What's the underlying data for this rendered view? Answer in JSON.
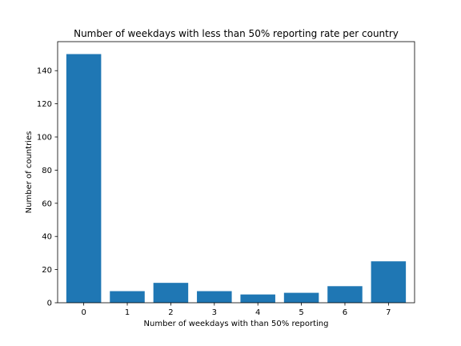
{
  "chart_data": {
    "type": "bar",
    "title": "Number of weekdays with less than 50% reporting rate per country",
    "xlabel": "Number of weekdays with than 50% reporting",
    "ylabel": "Number of countries",
    "categories": [
      "0",
      "1",
      "2",
      "3",
      "4",
      "5",
      "6",
      "7"
    ],
    "values": [
      150,
      7,
      12,
      7,
      5,
      6,
      10,
      25
    ],
    "x_ticks": [
      "0",
      "1",
      "2",
      "3",
      "4",
      "5",
      "6",
      "7"
    ],
    "y_ticks": [
      0,
      20,
      40,
      60,
      80,
      100,
      120,
      140
    ],
    "ylim": [
      0,
      157.5
    ],
    "xlim": [
      -0.6,
      7.6
    ],
    "bar_color": "#1f77b4",
    "grid": false,
    "legend": "none"
  }
}
